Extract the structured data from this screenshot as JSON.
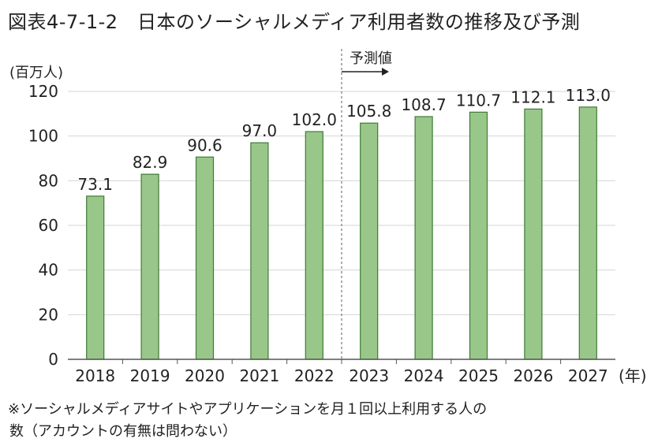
{
  "title": "図表4-7-1-2　日本のソーシャルメディア利用者数の推移及び予測",
  "chart_data": {
    "type": "bar",
    "ylabel": "(百万人)",
    "xlabel": "(年)",
    "ylim": [
      0,
      120
    ],
    "yticks": [
      0,
      20,
      40,
      60,
      80,
      100,
      120
    ],
    "grid": true,
    "forecast_label": "予測値",
    "forecast_start": "2023",
    "categories": [
      "2018",
      "2019",
      "2020",
      "2021",
      "2022",
      "2023",
      "2024",
      "2025",
      "2026",
      "2027"
    ],
    "values": [
      73.1,
      82.9,
      90.6,
      97.0,
      102.0,
      105.8,
      108.7,
      110.7,
      112.1,
      113.0
    ],
    "value_labels": [
      "73.1",
      "82.9",
      "90.6",
      "97.0",
      "102.0",
      "105.8",
      "108.7",
      "110.7",
      "112.1",
      "113.0"
    ],
    "bar_color": "#99c78a",
    "bar_edge_color": "#3f7a38"
  },
  "note": {
    "line1": "※ソーシャルメディアサイトやアプリケーションを月１回以上利用する人の",
    "line2": "数（アカウントの有無は問わない）"
  }
}
